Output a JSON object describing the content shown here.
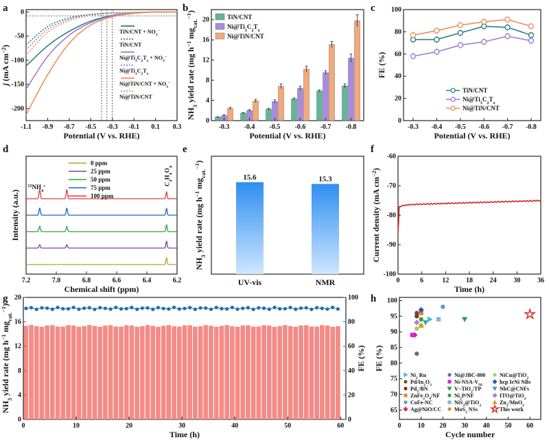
{
  "chart_data": [
    {
      "panel": "a",
      "type": "line",
      "xlabel": "Potential (V vs. RHE)",
      "ylabel": "j (mA cm-2)",
      "xlim": [
        -1.1,
        0.3
      ],
      "ylim": [
        -225,
        5
      ],
      "xticks": [
        "-1.1",
        "-0.9",
        "-0.7",
        "-0.5",
        "-0.3",
        "-0.1",
        "0.1",
        "0.3"
      ],
      "yticks": [
        "0",
        "-50",
        "-100",
        "-150",
        "-200"
      ],
      "series": [
        {
          "name": "TiN/CNT + NO3-",
          "color": "#2a7f84",
          "dash": false,
          "points": [
            [
              -1.1,
              -112
            ],
            [
              -0.9,
              -70
            ],
            [
              -0.7,
              -40
            ],
            [
              -0.5,
              -19
            ],
            [
              -0.3,
              -7
            ],
            [
              -0.1,
              -2
            ],
            [
              0.1,
              0
            ],
            [
              0.3,
              0
            ]
          ]
        },
        {
          "name": "TiN/CNT",
          "color": "#2a7f84",
          "dash": true,
          "points": [
            [
              -1.1,
              -68
            ],
            [
              -0.9,
              -30
            ],
            [
              -0.7,
              -12
            ],
            [
              -0.5,
              -5
            ],
            [
              -0.3,
              -2
            ],
            [
              -0.1,
              -1
            ],
            [
              0.1,
              0
            ],
            [
              0.3,
              0
            ]
          ]
        },
        {
          "name": "Ni@Ti3C2Tx + NO3-",
          "color": "#9b7bd8",
          "dash": false,
          "points": [
            [
              -1.1,
              -160
            ],
            [
              -0.9,
              -92
            ],
            [
              -0.7,
              -48
            ],
            [
              -0.5,
              -22
            ],
            [
              -0.3,
              -8
            ],
            [
              -0.1,
              -2
            ],
            [
              0.1,
              0
            ],
            [
              0.3,
              0
            ]
          ]
        },
        {
          "name": "Ni@Ti3C2Tx",
          "color": "#9b7bd8",
          "dash": true,
          "points": [
            [
              -1.1,
              -78
            ],
            [
              -0.9,
              -36
            ],
            [
              -0.7,
              -15
            ],
            [
              -0.5,
              -6
            ],
            [
              -0.3,
              -2
            ],
            [
              -0.1,
              -1
            ],
            [
              0.1,
              0
            ],
            [
              0.3,
              0
            ]
          ]
        },
        {
          "name": "Ni@TiN/CNT + NO3-",
          "color": "#e8925c",
          "dash": false,
          "points": [
            [
              -1.1,
              -213
            ],
            [
              -0.9,
              -130
            ],
            [
              -0.7,
              -65
            ],
            [
              -0.5,
              -27
            ],
            [
              -0.3,
              -10
            ],
            [
              -0.1,
              -3
            ],
            [
              0.1,
              0
            ],
            [
              0.3,
              0
            ]
          ]
        },
        {
          "name": "Ni@TiN/CNT",
          "color": "#e8925c",
          "dash": true,
          "points": [
            [
              -1.1,
              -90
            ],
            [
              -0.9,
              -42
            ],
            [
              -0.7,
              -18
            ],
            [
              -0.5,
              -7
            ],
            [
              -0.3,
              -3
            ],
            [
              -0.1,
              -1
            ],
            [
              0.1,
              0
            ],
            [
              0.3,
              0
            ]
          ]
        }
      ],
      "legend": [
        {
          "base": "TiN/CNT + NO",
          "sub": "3",
          "sup": "−"
        },
        {
          "base": "TiN/CNT"
        },
        {
          "base": "Ni@Ti",
          "sub": "3",
          "base2": "C",
          "sub2": "2",
          "base3": "T",
          "sub3": "x",
          "tail": " + NO",
          "sub4": "3",
          "sup": "−"
        },
        {
          "base": "Ni@Ti",
          "sub": "3",
          "base2": "C",
          "sub2": "2",
          "base3": "T",
          "sub3": "x"
        },
        {
          "base": "Ni@TiN/CNT + NO",
          "sub": "3",
          "sup": "−"
        },
        {
          "base": "Ni@TiN/CNT"
        }
      ],
      "vlines": [
        -0.4,
        -0.35,
        -0.3
      ]
    },
    {
      "panel": "b",
      "type": "bar",
      "xlabel": "Potential (V vs. RHE)",
      "ylabel": "NH3 yield rate (mg h-1 mgcat.-1)",
      "categories": [
        "-0.3",
        "-0.4",
        "-0.5",
        "-0.6",
        "-0.7",
        "-0.8"
      ],
      "ylim": [
        0,
        22
      ],
      "yticks": [
        "0",
        "4",
        "8",
        "12",
        "16",
        "20"
      ],
      "series": [
        {
          "name": "TiN/CNT",
          "color": "#62b59a",
          "values": [
            0.7,
            1.5,
            2.3,
            4.3,
            5.9,
            6.9
          ]
        },
        {
          "name": "Ni@Ti3C2Tx",
          "color": "#a98be0",
          "values": [
            1.0,
            2.0,
            3.8,
            6.4,
            9.5,
            12.4
          ]
        },
        {
          "name": "Ni@TiN/CNT",
          "color": "#f2a97c",
          "values": [
            2.4,
            3.9,
            6.8,
            10.2,
            15.1,
            19.8
          ]
        }
      ],
      "errors": [
        0.15,
        0.2,
        0.3,
        0.4,
        0.4,
        0.8
      ]
    },
    {
      "panel": "c",
      "type": "line",
      "xlabel": "Potential (V vs. RHE)",
      "ylabel": "FE (%)",
      "x": [
        "-0.3",
        "-0.4",
        "-0.5",
        "-0.6",
        "-0.7",
        "-0.8"
      ],
      "ylim": [
        0,
        100
      ],
      "yticks": [
        "0",
        "20",
        "40",
        "60",
        "80",
        "100"
      ],
      "series": [
        {
          "name": "TiN/CNT",
          "color": "#2a7f84",
          "values": [
            73,
            73,
            79,
            85,
            84,
            77
          ]
        },
        {
          "name": "Ni@Ti3C2Tx",
          "color": "#9b7bd8",
          "values": [
            58,
            62,
            68,
            71,
            76,
            72
          ]
        },
        {
          "name": "Ni@TiN/CNT",
          "color": "#e8925c",
          "values": [
            77,
            81,
            86,
            89,
            91,
            85
          ]
        }
      ]
    },
    {
      "panel": "d",
      "type": "line",
      "xlabel": "Chemical shift (ppm)",
      "ylabel": "Intensity (a.u.)",
      "xlim": [
        7.2,
        6.2
      ],
      "xticks": [
        "7.2",
        "7.0",
        "6.8",
        "6.6",
        "6.4",
        "6.2"
      ],
      "series": [
        {
          "name": "0 ppm",
          "color": "#b8a22a",
          "offset": 0
        },
        {
          "name": "25 ppm",
          "color": "#7b3fb0",
          "offset": 1
        },
        {
          "name": "50 ppm",
          "color": "#2aa53a",
          "offset": 2
        },
        {
          "name": "75 ppm",
          "color": "#1e5fcf",
          "offset": 3
        },
        {
          "name": "100 ppm",
          "color": "#e03a3a",
          "offset": 4
        }
      ],
      "peaks": {
        "nh4": [
          7.11,
          6.93
        ],
        "c4h4o4": 6.27
      },
      "annotations": [
        "15NH4+",
        "C4H4O4"
      ]
    },
    {
      "panel": "e",
      "type": "bar",
      "ylabel": "NH3 yield rate (mg h-1 mgcat.-1)",
      "categories": [
        "UV-vis",
        "NMR"
      ],
      "values": [
        15.6,
        15.3
      ],
      "value_labels": [
        "15.6",
        "15.3"
      ],
      "ylim": [
        0,
        20
      ]
    },
    {
      "panel": "f",
      "type": "line",
      "xlabel": "Time (h)",
      "ylabel": "Current density (mA cm-2)",
      "xlim": [
        0,
        36
      ],
      "ylim": [
        -100,
        -60
      ],
      "xticks": [
        "0",
        "6",
        "12",
        "18",
        "24",
        "30",
        "36"
      ],
      "yticks": [
        "-60",
        "-70",
        "-80",
        "-90",
        "-100"
      ],
      "series": [
        {
          "name": "",
          "color": "#d62020",
          "points": [
            [
              0,
              -86
            ],
            [
              0.2,
              -79
            ],
            [
              0.8,
              -77
            ],
            [
              2,
              -76.5
            ],
            [
              6,
              -76.2
            ],
            [
              12,
              -76
            ],
            [
              18,
              -75.8
            ],
            [
              24,
              -75.6
            ],
            [
              30,
              -75.4
            ],
            [
              36,
              -75.2
            ]
          ]
        }
      ]
    },
    {
      "panel": "g",
      "type": "bar",
      "xlabel": "Time (h)",
      "ylabel": "NH3 yield rate (mg h-1 mgcat.-1)",
      "ylabel2": "FE (%)",
      "xlim": [
        0,
        61
      ],
      "ylim": [
        0,
        20
      ],
      "ylim2": [
        0,
        100
      ],
      "xticks": [
        "0",
        "10",
        "20",
        "30",
        "40",
        "50",
        "60"
      ],
      "yticks": [
        "0",
        "4",
        "8",
        "12",
        "16",
        "20"
      ],
      "yticks2": [
        "0",
        "20",
        "40",
        "60",
        "80",
        "100"
      ],
      "bar_color": "#f58b86",
      "bar_count": 60,
      "bar_value": 15.3,
      "fe_color": "#1f6fb5",
      "fe_value": 91
    },
    {
      "panel": "h",
      "type": "scatter",
      "xlabel": "Cycle number",
      "ylabel": "FE (%)",
      "xlim": [
        0,
        65
      ],
      "ylim": [
        62,
        101
      ],
      "xticks": [
        "0",
        "10",
        "20",
        "30",
        "40",
        "50",
        "60"
      ],
      "yticks": [
        "65",
        "70",
        "75",
        "80",
        "85",
        "90",
        "95",
        "100"
      ],
      "points": [
        {
          "name": "Ni1 Ru",
          "sub": "1",
          "color": "#2ec4d6",
          "shape": "tri-right",
          "x": 14,
          "y": 94
        },
        {
          "name": "Pd/In2O3",
          "color": "#7a4a2a",
          "shape": "circle",
          "x": 8,
          "y": 96
        },
        {
          "name": "Pd1/BN",
          "color": "#8a2a2a",
          "shape": "circle",
          "x": 8,
          "y": 95
        },
        {
          "name": "ZnFe2O4/NF",
          "color": "#e8863a",
          "shape": "square",
          "x": 10,
          "y": 96
        },
        {
          "name": "CoFe-NC",
          "color": "#5a9ad6",
          "shape": "hexagon",
          "x": 20,
          "y": 98
        },
        {
          "name": "Ag@NiO/CC",
          "color": "#e0206a",
          "shape": "diamond",
          "x": 7,
          "y": 89
        },
        {
          "name": "Ni@JBC-800",
          "color": "#6a6a9a",
          "shape": "circle",
          "x": 8,
          "y": 83
        },
        {
          "name": "Ni-NSA-VNi",
          "color": "#e020e0",
          "shape": "square",
          "x": 6,
          "y": 89
        },
        {
          "name": "V-TiO2/TP",
          "color": "#2a9a6a",
          "shape": "tri-down",
          "x": 30,
          "y": 94
        },
        {
          "name": "Ni2P/NF",
          "color": "#3a9a3a",
          "shape": "circle",
          "x": 10,
          "y": 94
        },
        {
          "name": "NiS2@TiO2",
          "color": "#8ab0e0",
          "shape": "square",
          "x": 18,
          "y": 94
        },
        {
          "name": "MoS2 NSs",
          "color": "#c89a2a",
          "shape": "circle",
          "x": 10,
          "y": 92
        },
        {
          "name": "NiCu@TiO2",
          "color": "#9ad06a",
          "shape": "circle",
          "x": 8,
          "y": 91
        },
        {
          "name": "hcp IrNi NBs",
          "color": "#2a5ab0",
          "shape": "diamond",
          "x": 10,
          "y": 97
        },
        {
          "name": "NbC@CNFs",
          "color": "#3aa0a0",
          "shape": "tri-down",
          "x": 12,
          "y": 93
        },
        {
          "name": "ITO@TiO2",
          "color": "#b080d0",
          "shape": "diamond",
          "x": 8,
          "y": 93
        },
        {
          "name": "Zn1/MnO2",
          "color": "#d0a020",
          "shape": "tri-up",
          "x": 10,
          "y": 92
        },
        {
          "name": "This work",
          "color": "#e02020",
          "shape": "star",
          "x": 60,
          "y": 95.6
        }
      ]
    }
  ],
  "panel_letters": [
    "a",
    "b",
    "c",
    "d",
    "e",
    "f",
    "g",
    "h"
  ]
}
